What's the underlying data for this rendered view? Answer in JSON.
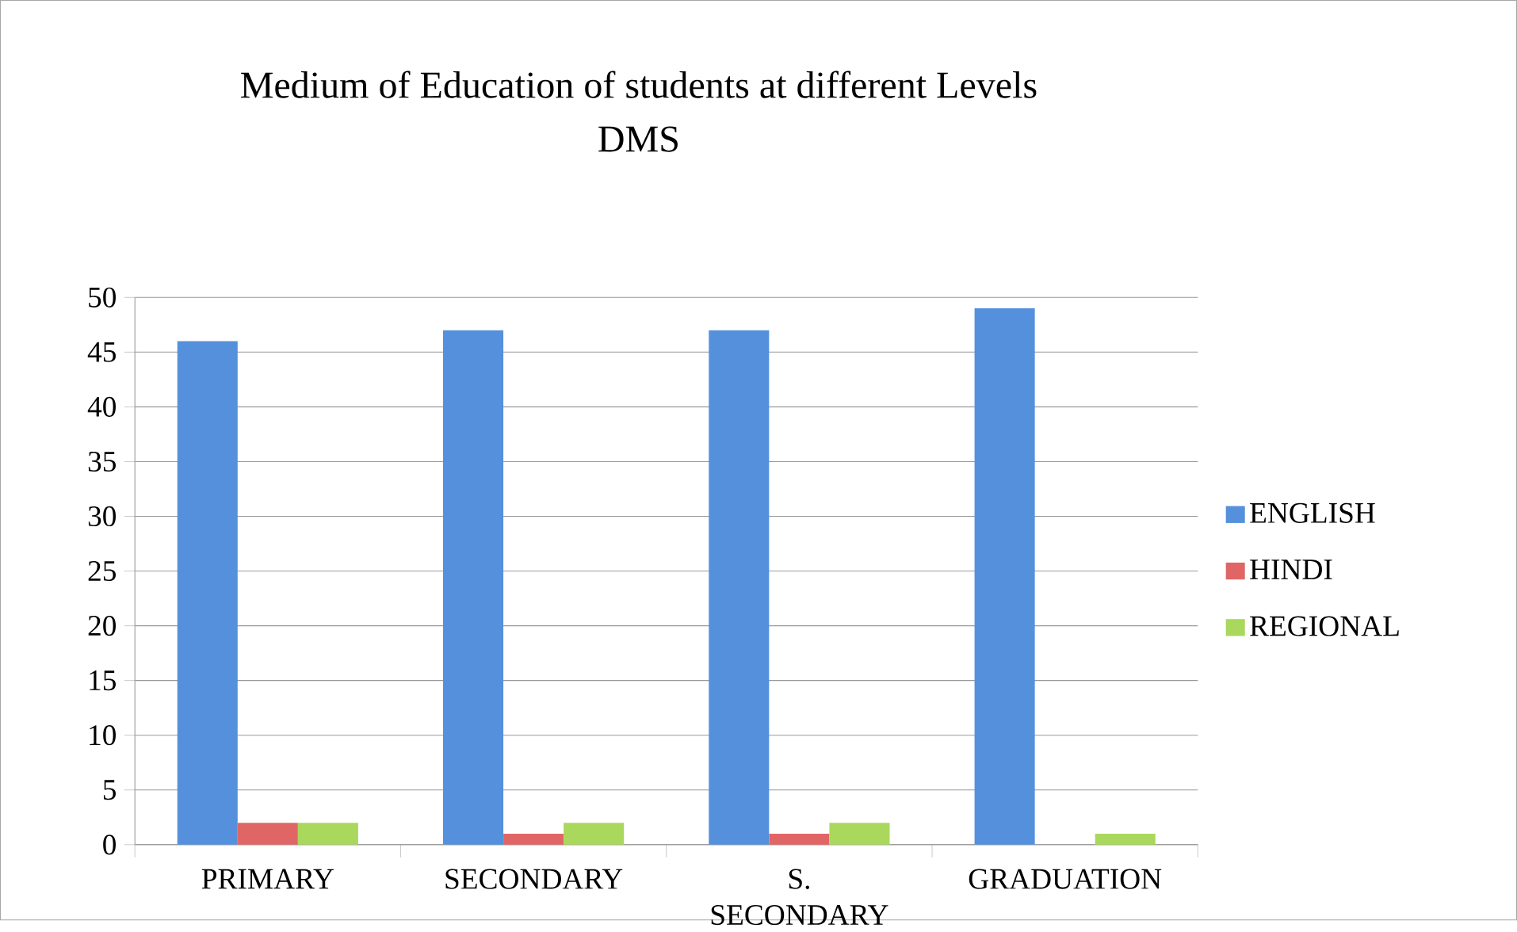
{
  "chart_data": {
    "type": "bar",
    "title": "Medium of Education of students at different Levels",
    "subtitle": "DMS",
    "categories": [
      "PRIMARY",
      "SECONDARY",
      "S. SECONDARY",
      "GRADUATION"
    ],
    "series": [
      {
        "name": "ENGLISH",
        "color": "#5590dc",
        "values": [
          46,
          47,
          47,
          49
        ]
      },
      {
        "name": "HINDI",
        "color": "#e06666",
        "values": [
          2,
          1,
          1,
          0
        ]
      },
      {
        "name": "REGIONAL",
        "color": "#a9d85c",
        "values": [
          2,
          2,
          2,
          1
        ]
      }
    ],
    "ylim": [
      0,
      50
    ],
    "yticks": [
      0,
      5,
      10,
      15,
      20,
      25,
      30,
      35,
      40,
      45,
      50
    ],
    "grid": "y",
    "legend": "right"
  }
}
